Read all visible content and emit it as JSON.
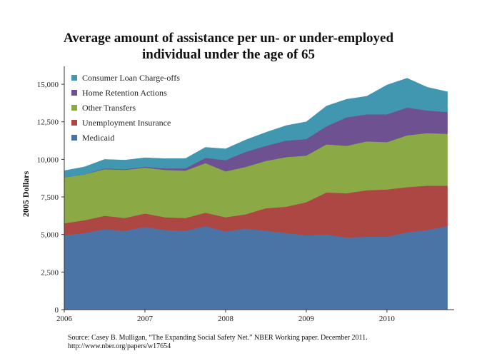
{
  "chart_data": {
    "type": "area",
    "stacked": true,
    "title_lines": [
      "Average amount of assistance per un- or under-employed",
      "individual under the age of 65"
    ],
    "ylabel": "2005 Dollars",
    "xlabel": "",
    "xlim": [
      2006,
      2010.833
    ],
    "ylim": [
      0,
      16000
    ],
    "x_ticks": [
      2006,
      2007,
      2008,
      2009,
      2010
    ],
    "x_tick_labels": [
      "2006",
      "2007",
      "2008",
      "2009",
      "2010"
    ],
    "y_ticks": [
      0,
      2500,
      5000,
      7500,
      10000,
      12500,
      15000
    ],
    "y_tick_labels": [
      "0",
      "2,500",
      "5,000",
      "7,500",
      "10,000",
      "12,500",
      "15,000"
    ],
    "legend_position": "top-left",
    "x": [
      2006.0,
      2006.25,
      2006.5,
      2006.75,
      2007.0,
      2007.25,
      2007.5,
      2007.75,
      2008.0,
      2008.25,
      2008.5,
      2008.75,
      2009.0,
      2009.25,
      2009.5,
      2009.75,
      2010.0,
      2010.25,
      2010.5,
      2010.75
    ],
    "series": [
      {
        "name": "Medicaid",
        "color": "#4A74A6",
        "values": [
          4950,
          5100,
          5350,
          5250,
          5500,
          5300,
          5250,
          5550,
          5200,
          5400,
          5250,
          5100,
          4950,
          5000,
          4800,
          4850,
          4850,
          5150,
          5300,
          5550
        ]
      },
      {
        "name": "Unemployment Insurance",
        "color": "#AD4744",
        "values": [
          800,
          850,
          900,
          850,
          900,
          850,
          850,
          900,
          950,
          950,
          1500,
          1750,
          2200,
          2800,
          2950,
          3100,
          3150,
          3000,
          2950,
          2700
        ]
      },
      {
        "name": "Other Transfers",
        "color": "#8BAA45",
        "values": [
          3050,
          3050,
          3100,
          3200,
          3050,
          3150,
          3150,
          3300,
          3050,
          3150,
          3150,
          3300,
          3100,
          3200,
          3150,
          3250,
          3150,
          3450,
          3500,
          3450
        ]
      },
      {
        "name": "Home Retention Actions",
        "color": "#6E5191",
        "values": [
          0,
          0,
          50,
          50,
          60,
          100,
          150,
          350,
          750,
          1000,
          1000,
          1100,
          1100,
          1200,
          1900,
          1800,
          1850,
          1850,
          1500,
          1450
        ]
      },
      {
        "name": "Consumer Loan Charge-offs",
        "color": "#4197B0",
        "values": [
          450,
          500,
          600,
          600,
          600,
          650,
          650,
          700,
          750,
          800,
          900,
          1000,
          1150,
          1350,
          1200,
          1200,
          1950,
          1950,
          1550,
          1350
        ]
      }
    ]
  },
  "source": {
    "line1": "Source:    Casey B. Mulligan, “The Expanding Social Safety Net.” NBER Working paper. December 2011.",
    "line2": "http://www.nber.org/papers/w17654"
  }
}
